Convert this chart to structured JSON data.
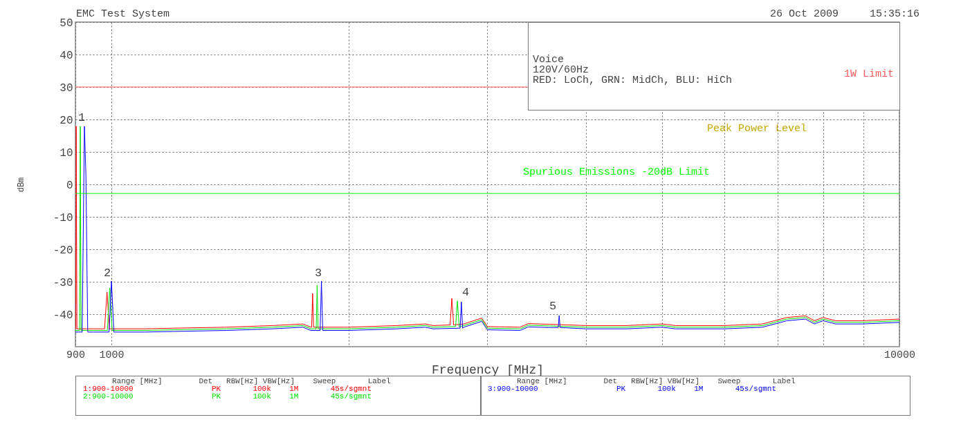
{
  "chart_data": {
    "type": "line",
    "title": "EMC Test System",
    "subtitle": "26 Oct 2009     15:35:16",
    "xlabel": "Frequency [MHz]",
    "ylabel": "dBm",
    "log": "x",
    "grid": true,
    "legend": "bottom",
    "line_style": "solid",
    "xlim": [
      900,
      10000
    ],
    "ylim": [
      -50,
      50
    ],
    "xticks": [
      900,
      1000,
      {
        "value": 2000,
        "label": null
      },
      {
        "value": 3000,
        "label": null
      },
      {
        "value": 4000,
        "label": null
      },
      {
        "value": 5000,
        "label": null
      },
      {
        "value": 6000,
        "label": null
      },
      {
        "value": 7000,
        "label": null
      },
      {
        "value": 8000,
        "label": null
      },
      {
        "value": 9000,
        "label": null
      },
      10000
    ],
    "yticks": [
      -40,
      -30,
      -20,
      -10,
      0,
      10,
      20,
      30,
      40,
      50
    ],
    "series": [
      {
        "name": "1:900-10000",
        "color": "#ff0000",
        "x": [
          900,
          901,
          902,
          904,
          950,
          980,
          987,
          994,
          1100,
          1200,
          1400,
          1600,
          1750,
          1790,
          1795,
          1800,
          1805,
          2000,
          2300,
          2500,
          2560,
          2690,
          2704,
          2718,
          2800,
          2950,
          3000,
          3300,
          3380,
          3600,
          4000,
          4500,
          5000,
          5200,
          6000,
          6700,
          7200,
          7600,
          7800,
          8000,
          8300,
          9000,
          10000
        ],
        "values": [
          -44.5,
          -44.5,
          17.9,
          -44.5,
          -44.5,
          -44.5,
          -33.2,
          -44.5,
          -44.5,
          -44.3,
          -44,
          -43.5,
          -43,
          -44,
          -44,
          -33.6,
          -44,
          -44,
          -43.5,
          -43,
          -43.5,
          -43.3,
          -35.1,
          -43.3,
          -43,
          -41.2,
          -43.8,
          -44,
          -42.9,
          -43.1,
          -43.5,
          -43.5,
          -43,
          -43.5,
          -43.5,
          -43,
          -41,
          -40.5,
          -42,
          -41,
          -42,
          -42,
          -41.5
        ]
      },
      {
        "name": "2:900-10000",
        "color": "#00e000",
        "x": [
          900,
          911,
          913,
          915,
          950,
          988,
          995,
          1002,
          1100,
          1200,
          1400,
          1600,
          1750,
          1790,
          1819,
          1824,
          1829,
          2000,
          2300,
          2500,
          2560,
          2734,
          2748,
          2762,
          2800,
          2950,
          3000,
          3300,
          3380,
          3600,
          4000,
          4500,
          5000,
          5200,
          6000,
          6700,
          7200,
          7600,
          7800,
          8000,
          8300,
          9000,
          10000
        ],
        "values": [
          -45,
          -45,
          17.9,
          -45,
          -45,
          -45,
          -31.9,
          -45,
          -45,
          -44.8,
          -44.5,
          -44,
          -43.5,
          -44.5,
          -44.5,
          -31.1,
          -44.5,
          -44.5,
          -44,
          -43.5,
          -44,
          -43.8,
          -35.9,
          -43.8,
          -43.5,
          -41.7,
          -44.3,
          -44.5,
          -43.4,
          -43.6,
          -44,
          -44,
          -43.5,
          -44,
          -44,
          -43.5,
          -41.5,
          -41,
          -42.5,
          -41.5,
          -42.5,
          -42.5,
          -42
        ]
      },
      {
        "name": "3:900-10000",
        "color": "#0000ff",
        "x": [
          900,
          918,
          924,
          928,
          933,
          950,
          993,
          1000,
          1007,
          1100,
          1200,
          1400,
          1600,
          1750,
          1790,
          1840,
          1847,
          1854,
          2000,
          2300,
          2500,
          2560,
          2770,
          2780,
          2790,
          2800,
          2950,
          3000,
          3300,
          3380,
          3600,
          3690,
          3700,
          3710,
          4000,
          4500,
          5000,
          5200,
          6000,
          6700,
          7200,
          7600,
          7800,
          8000,
          8300,
          9000,
          10000
        ],
        "values": [
          -45.5,
          -45.5,
          17.9,
          3,
          -45.5,
          -45.5,
          -45.5,
          -29.8,
          -45.5,
          -45.5,
          -45.3,
          -45,
          -44.5,
          -44,
          -45,
          -45,
          -29.8,
          -45,
          -45,
          -44.5,
          -44,
          -44.5,
          -44.3,
          -36.2,
          -44.3,
          -44,
          -42.2,
          -44.8,
          -45,
          -43.9,
          -44.1,
          -44.1,
          -40.4,
          -44.1,
          -44.5,
          -44.5,
          -44,
          -44.5,
          -44.5,
          -44,
          -42,
          -41.5,
          -43,
          -42,
          -43,
          -43,
          -42.5
        ]
      }
    ],
    "ref_lines": [
      {
        "axis": "y",
        "value": 30,
        "label": "1W Limit",
        "color": "#ff5a5a"
      },
      {
        "axis": "y",
        "value": -2.8,
        "label": "Spurious Emissions -20dB Limit",
        "color": "#00ff00"
      }
    ],
    "annotations": [
      "Voice",
      "120V/60Hz",
      "RED: LoCh, GRN: MidCh, BLU: HiCh",
      "Peak Power Level",
      "Range [MHz]        Det   RBW[Hz] VBW[Hz]    Sweep       Label",
      "Range [MHz]        Det   RBW[Hz] VBW[Hz]    Sweep       Label",
      "PK       100k    1M       45s/sgmnt",
      "PK       100k    1M       45s/sgmnt",
      "PK       100k    1M       45s/sgmnt",
      "1",
      "2",
      "3",
      "4",
      "5"
    ]
  }
}
